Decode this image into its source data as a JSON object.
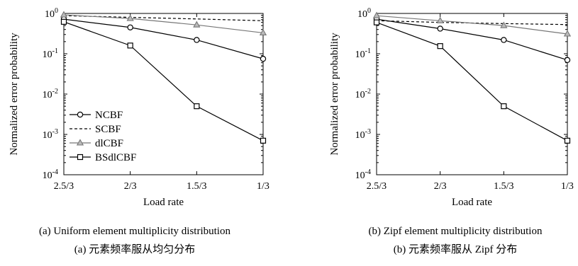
{
  "chart_data": [
    {
      "type": "line",
      "x": [
        "2.5/3",
        "2/3",
        "1.5/3",
        "1/3"
      ],
      "xlabel": "Load rate",
      "ylabel": "Normalized error probability",
      "yscale": "log",
      "ylim": [
        0.0001,
        1
      ],
      "yticks": [
        "10^0",
        "10^-1",
        "10^-2",
        "10^-3",
        "10^-4"
      ],
      "legend": "lower-left",
      "caption_en": "(a) Uniform element multiplicity distribution",
      "caption_zh": "(a) 元素频率服从均匀分布",
      "series": [
        {
          "name": "NCBF",
          "marker": "circle",
          "style": "solid",
          "color": "#000000",
          "values": [
            0.72,
            0.45,
            0.22,
            0.075
          ]
        },
        {
          "name": "SCBF",
          "marker": "none",
          "style": "dashed",
          "color": "#000000",
          "values": [
            0.88,
            0.8,
            0.73,
            0.66
          ]
        },
        {
          "name": "dlCBF",
          "marker": "triangle",
          "style": "solid",
          "color": "#777777",
          "values": [
            0.92,
            0.75,
            0.52,
            0.33
          ]
        },
        {
          "name": "BSdlCBF",
          "marker": "square",
          "style": "solid",
          "color": "#000000",
          "values": [
            0.62,
            0.16,
            0.005,
            0.0007
          ]
        }
      ]
    },
    {
      "type": "line",
      "x": [
        "2.5/3",
        "2/3",
        "1.5/3",
        "1/3"
      ],
      "xlabel": "Load rate",
      "ylabel": "Normalized error probability",
      "yscale": "log",
      "ylim": [
        0.0001,
        1
      ],
      "yticks": [
        "10^0",
        "10^-1",
        "10^-2",
        "10^-3",
        "10^-4"
      ],
      "caption_en": "(b) Zipf element multiplicity distribution",
      "caption_zh": "(b) 元素频率服从 Zipf 分布",
      "series": [
        {
          "name": "NCBF",
          "marker": "circle",
          "style": "solid",
          "color": "#000000",
          "values": [
            0.72,
            0.42,
            0.22,
            0.07
          ]
        },
        {
          "name": "SCBF",
          "marker": "none",
          "style": "dashed",
          "color": "#000000",
          "values": [
            0.66,
            0.6,
            0.56,
            0.53
          ]
        },
        {
          "name": "dlCBF",
          "marker": "triangle",
          "style": "solid",
          "color": "#777777",
          "values": [
            0.88,
            0.66,
            0.5,
            0.31
          ]
        },
        {
          "name": "BSdlCBF",
          "marker": "square",
          "style": "solid",
          "color": "#000000",
          "values": [
            0.6,
            0.155,
            0.005,
            0.0007
          ]
        }
      ]
    }
  ]
}
